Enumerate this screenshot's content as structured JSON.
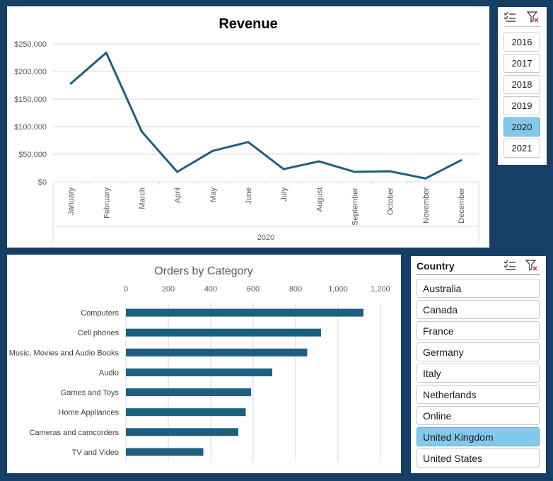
{
  "revenue_chart": {
    "chart_data": {
      "type": "line",
      "title": "Revenue",
      "categories": [
        "January",
        "February",
        "March",
        "April",
        "May",
        "June",
        "July",
        "August",
        "September",
        "October",
        "November",
        "December"
      ],
      "group_label": "2020",
      "values": [
        178000,
        234000,
        91000,
        18000,
        56000,
        72000,
        23000,
        37000,
        18000,
        19000,
        6000,
        39000
      ],
      "y_ticks": [
        "$250,000",
        "$200,000",
        "$150,000",
        "$100,000",
        "$50,000",
        "$0"
      ],
      "y_tick_values": [
        250000,
        200000,
        150000,
        100000,
        50000,
        0
      ],
      "ylim": [
        0,
        250000
      ],
      "series_color": "#1d5f7e"
    }
  },
  "orders_chart": {
    "chart_data": {
      "type": "bar",
      "orientation": "horizontal",
      "title": "Orders by Category",
      "categories": [
        "Computers",
        "Cell phones",
        "Music, Movies and Audio Books",
        "Audio",
        "Games and Toys",
        "Home Appliances",
        "Cameras and camcorders",
        "TV and Video"
      ],
      "values": [
        1120,
        920,
        855,
        690,
        590,
        565,
        530,
        365
      ],
      "x_ticks": [
        "0",
        "200",
        "400",
        "600",
        "800",
        "1,000",
        "1,200"
      ],
      "x_tick_values": [
        0,
        200,
        400,
        600,
        800,
        1000,
        1200
      ],
      "xlim": [
        0,
        1200
      ],
      "series_color": "#1d5f7e"
    }
  },
  "year_slicer": {
    "items": [
      {
        "label": "2016",
        "selected": false
      },
      {
        "label": "2017",
        "selected": false
      },
      {
        "label": "2018",
        "selected": false
      },
      {
        "label": "2019",
        "selected": false
      },
      {
        "label": "2020",
        "selected": true
      },
      {
        "label": "2021",
        "selected": false
      }
    ],
    "icons": [
      "multi-select-icon",
      "clear-filter-icon"
    ]
  },
  "country_slicer": {
    "title": "Country",
    "items": [
      {
        "label": "Australia",
        "selected": false
      },
      {
        "label": "Canada",
        "selected": false
      },
      {
        "label": "France",
        "selected": false
      },
      {
        "label": "Germany",
        "selected": false
      },
      {
        "label": "Italy",
        "selected": false
      },
      {
        "label": "Netherlands",
        "selected": false
      },
      {
        "label": "Online",
        "selected": false
      },
      {
        "label": "United Kingdom",
        "selected": true
      },
      {
        "label": "United States",
        "selected": false
      }
    ],
    "icons": [
      "multi-select-icon",
      "clear-filter-icon"
    ]
  },
  "colors": {
    "background": "#173e64",
    "selected": "#83c9ec",
    "series": "#1d5f7e"
  }
}
